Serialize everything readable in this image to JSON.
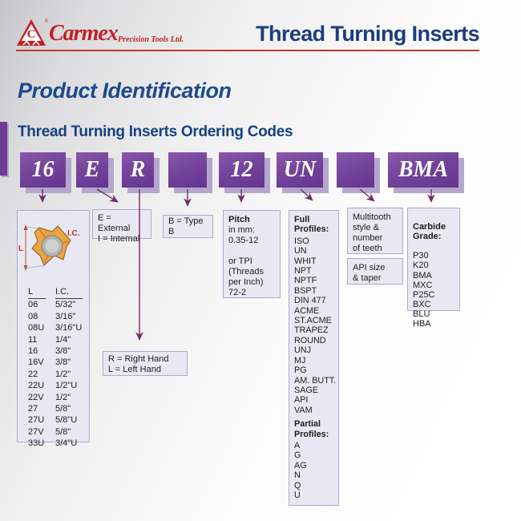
{
  "header": {
    "brand": "Carmex",
    "logo_letter": "C",
    "registered": "®",
    "tagline": "Precision Tools Ltd.",
    "title": "Thread Turning Inserts"
  },
  "page": {
    "title": "Product Identification",
    "subtitle": "Thread Turning Inserts Ordering Codes"
  },
  "colors": {
    "purple": "#6f3d96",
    "purple_shadow": "#b5a6ce",
    "info_box_bg": "#e9e7f2",
    "info_box_border": "#b3a8c9",
    "heading_blue": "#1c4a8c",
    "brand_red": "#c22127",
    "arrow": "#6e2d62"
  },
  "code_boxes": [
    {
      "id": "size",
      "label": "16"
    },
    {
      "id": "external-internal",
      "label": "E"
    },
    {
      "id": "hand",
      "label": "R"
    },
    {
      "id": "type",
      "label": ""
    },
    {
      "id": "pitch",
      "label": "12"
    },
    {
      "id": "profile",
      "label": "UN"
    },
    {
      "id": "multitooth",
      "label": ""
    },
    {
      "id": "carbide-grade",
      "label": "BMA"
    }
  ],
  "size_box": {
    "dim_label_l": "L",
    "dim_label_ic": "I.C.",
    "col_headers": [
      "L",
      "I.C."
    ],
    "rows": [
      [
        "06",
        "5/32\""
      ],
      [
        "08",
        "3/16\""
      ],
      [
        "08U",
        "3/16\"U"
      ],
      [
        "11",
        "1/4\""
      ],
      [
        "16",
        "3/8\""
      ],
      [
        "16V",
        "3/8\""
      ],
      [
        "22",
        "1/2\""
      ],
      [
        "22U",
        "1/2\"U"
      ],
      [
        "22V",
        "1/2\""
      ],
      [
        "27",
        "5/8\""
      ],
      [
        "27U",
        "5/8\"U"
      ],
      [
        "27V",
        "5/8\""
      ],
      [
        "33U",
        "3/4\"U"
      ]
    ]
  },
  "ei_box": {
    "text": "E = External\nI = Internal"
  },
  "type_box": {
    "text": "B = Type B"
  },
  "hand_box": {
    "text": "R = Right Hand\nL = Left Hand"
  },
  "pitch_box": {
    "title": "Pitch",
    "body": "in mm:\n0.35-12\n\nor TPI\n(Threads\nper Inch)\n72-2"
  },
  "profile_box": {
    "full_title": "Full Profiles:",
    "full": [
      "ISO",
      "UN",
      "WHIT",
      "NPT",
      "NPTF",
      "BSPT",
      "DIN 477",
      "ACME",
      "ST.ACME",
      "TRAPEZ",
      "ROUND",
      "UNJ",
      "MJ",
      "PG",
      "AM. BUTT.",
      "SAGE",
      "API",
      "VAM"
    ],
    "partial_title": "Partial Profiles:",
    "partial": [
      "A",
      "G",
      "AG",
      "N",
      "Q",
      "U"
    ]
  },
  "multitooth_box": {
    "text": "Multitooth\nstyle &\nnumber\nof teeth"
  },
  "api_box": {
    "text": "API size\n& taper"
  },
  "grade_box": {
    "title": "Carbide\nGrade:",
    "grades": [
      "P30",
      "K20",
      "BMA",
      "MXC",
      "P25C",
      "BXC",
      "BLU",
      "HBA"
    ]
  }
}
